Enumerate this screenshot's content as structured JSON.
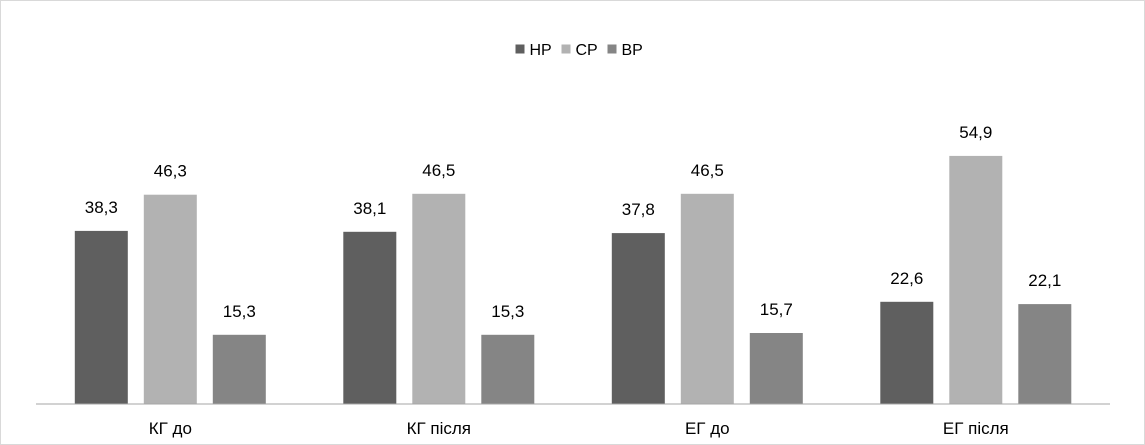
{
  "chart_data": {
    "type": "bar",
    "categories": [
      "КГ до",
      "КГ після",
      "ЕГ до",
      "ЕГ після"
    ],
    "series": [
      {
        "name": "НР",
        "values": [
          38.3,
          38.1,
          37.8,
          22.6
        ],
        "color": "#5f5f5f"
      },
      {
        "name": "СР",
        "values": [
          46.3,
          46.5,
          46.5,
          54.9
        ],
        "color": "#b2b2b2"
      },
      {
        "name": "ВР",
        "values": [
          15.3,
          15.3,
          15.7,
          22.1
        ],
        "color": "#858585"
      }
    ],
    "data_labels": [
      [
        "38,3",
        "38,1",
        "37,8",
        "22,6"
      ],
      [
        "46,3",
        "46,5",
        "46,5",
        "54,9"
      ],
      [
        "15,3",
        "15,3",
        "15,7",
        "22,1"
      ]
    ],
    "ylim": [
      0,
      60
    ],
    "legend_position": "top-center",
    "grid": false,
    "axis_color": "#a6a6a6"
  }
}
